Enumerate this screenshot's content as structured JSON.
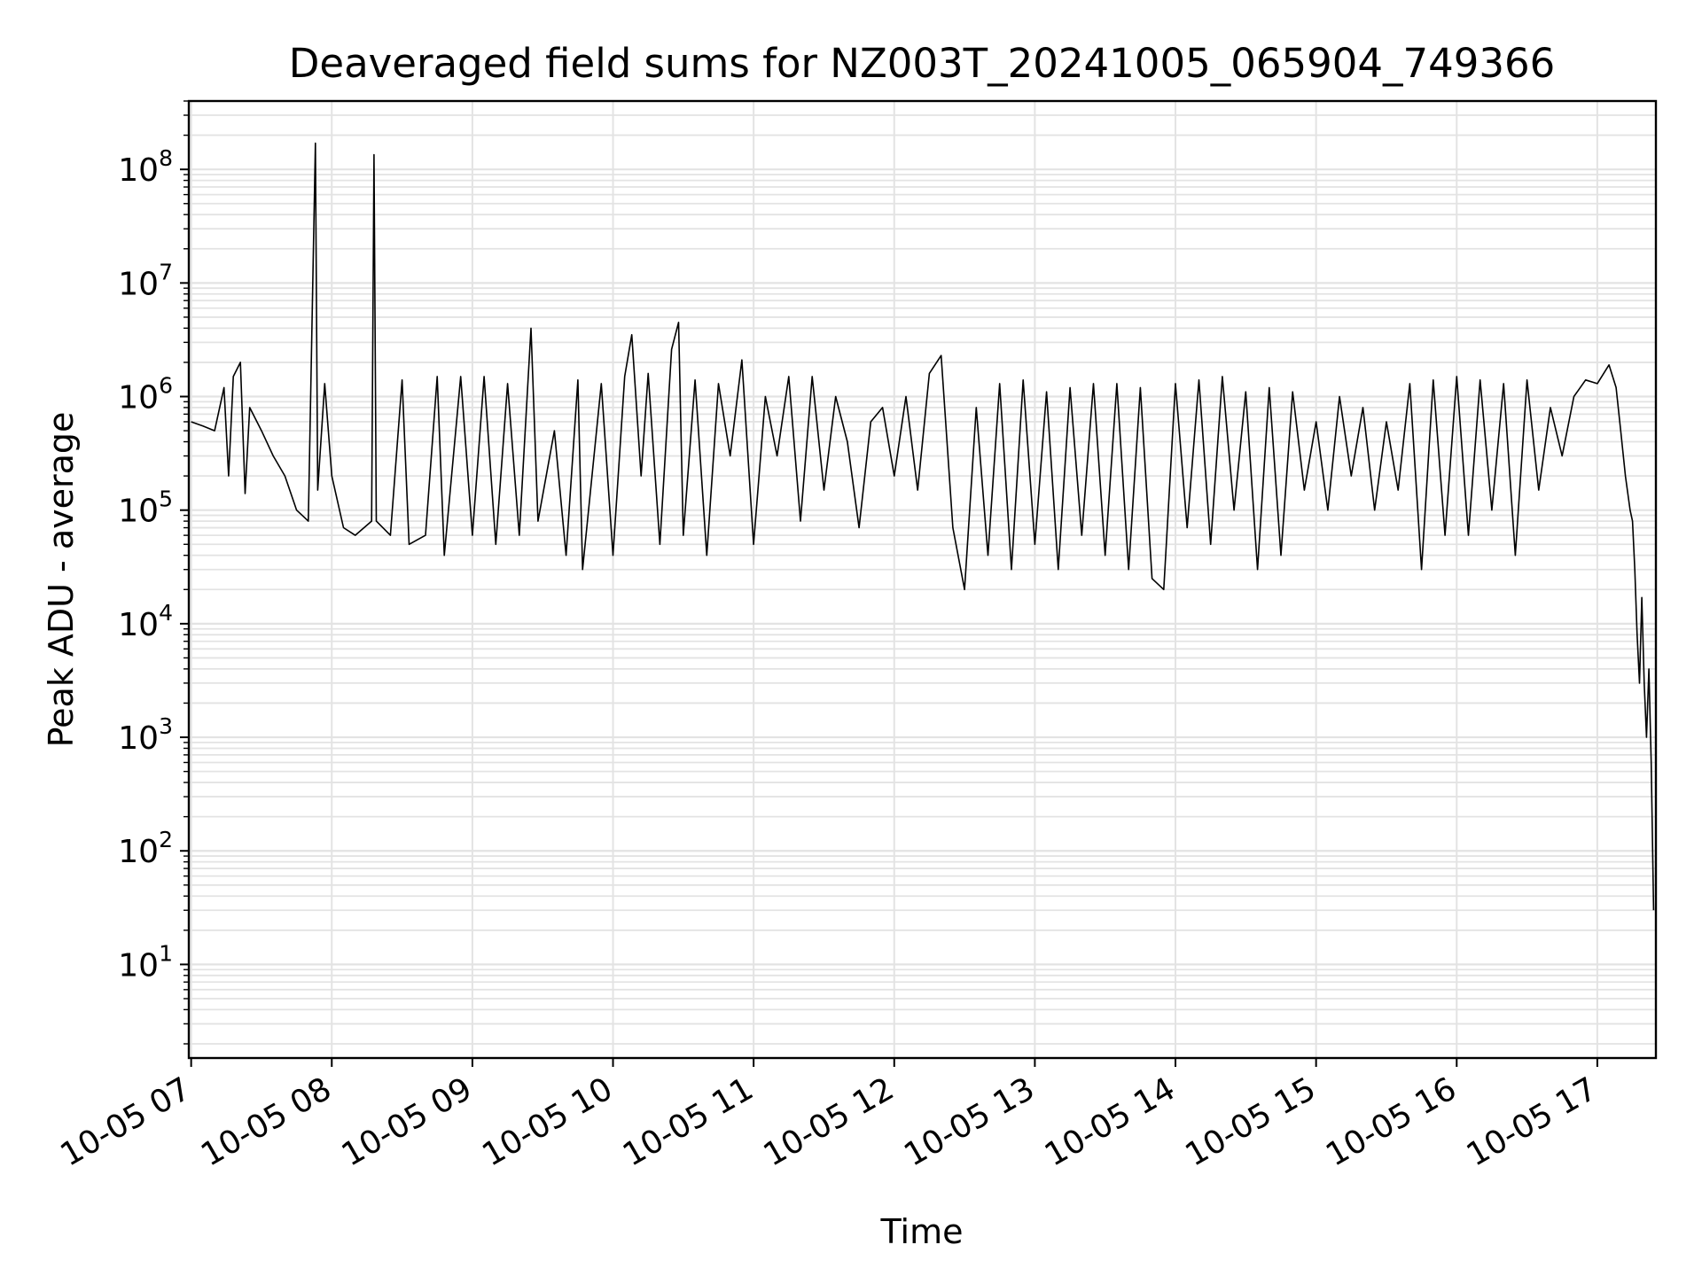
{
  "chart_data": {
    "type": "line",
    "title": "Deaveraged field sums for NZ003T_20241005_065904_749366",
    "xlabel": "Time",
    "ylabel": "Peak ADU - average",
    "y_scale": "log",
    "grid": true,
    "legend": "none",
    "line_color": "#000000",
    "x_tick_labels": [
      "10-05 07",
      "10-05 08",
      "10-05 09",
      "10-05 10",
      "10-05 11",
      "10-05 12",
      "10-05 13",
      "10-05 14",
      "10-05 15",
      "10-05 16",
      "10-05 17"
    ],
    "x_ticks": [
      "2024-10-05 07:00",
      "2024-10-05 08:00",
      "2024-10-05 09:00",
      "2024-10-05 10:00",
      "2024-10-05 11:00",
      "2024-10-05 12:00",
      "2024-10-05 13:00",
      "2024-10-05 14:00",
      "2024-10-05 15:00",
      "2024-10-05 16:00",
      "2024-10-05 17:00"
    ],
    "y_tick_labels": [
      {
        "base": "10",
        "exp": "1"
      },
      {
        "base": "10",
        "exp": "2"
      },
      {
        "base": "10",
        "exp": "3"
      },
      {
        "base": "10",
        "exp": "4"
      },
      {
        "base": "10",
        "exp": "5"
      },
      {
        "base": "10",
        "exp": "6"
      },
      {
        "base": "10",
        "exp": "7"
      },
      {
        "base": "10",
        "exp": "8"
      }
    ],
    "xlim": [
      "2024-10-05 06:59",
      "2024-10-05 17:25"
    ],
    "ylim": [
      1.5,
      400000000
    ],
    "series": [
      {
        "points": [
          [
            "2024-10-05 07:00",
            600000
          ],
          [
            "2024-10-05 07:05",
            550000
          ],
          [
            "2024-10-05 07:10",
            500000
          ],
          [
            "2024-10-05 07:14",
            1200000
          ],
          [
            "2024-10-05 07:16",
            200000
          ],
          [
            "2024-10-05 07:18",
            1500000
          ],
          [
            "2024-10-05 07:21",
            2000000
          ],
          [
            "2024-10-05 07:23",
            140000
          ],
          [
            "2024-10-05 07:25",
            800000
          ],
          [
            "2024-10-05 07:30",
            500000
          ],
          [
            "2024-10-05 07:35",
            300000
          ],
          [
            "2024-10-05 07:40",
            200000
          ],
          [
            "2024-10-05 07:45",
            100000
          ],
          [
            "2024-10-05 07:50",
            80000
          ],
          [
            "2024-10-05 07:53",
            170000000
          ],
          [
            "2024-10-05 07:54",
            150000
          ],
          [
            "2024-10-05 07:57",
            1300000
          ],
          [
            "2024-10-05 08:00",
            200000
          ],
          [
            "2024-10-05 08:05",
            70000
          ],
          [
            "2024-10-05 08:10",
            60000
          ],
          [
            "2024-10-05 08:17",
            80000
          ],
          [
            "2024-10-05 08:18",
            135000000
          ],
          [
            "2024-10-05 08:19",
            80000
          ],
          [
            "2024-10-05 08:25",
            60000
          ],
          [
            "2024-10-05 08:30",
            1400000
          ],
          [
            "2024-10-05 08:33",
            50000
          ],
          [
            "2024-10-05 08:40",
            60000
          ],
          [
            "2024-10-05 08:45",
            1500000
          ],
          [
            "2024-10-05 08:48",
            40000
          ],
          [
            "2024-10-05 08:55",
            1500000
          ],
          [
            "2024-10-05 09:00",
            60000
          ],
          [
            "2024-10-05 09:05",
            1500000
          ],
          [
            "2024-10-05 09:10",
            50000
          ],
          [
            "2024-10-05 09:15",
            1300000
          ],
          [
            "2024-10-05 09:20",
            60000
          ],
          [
            "2024-10-05 09:25",
            4000000
          ],
          [
            "2024-10-05 09:28",
            80000
          ],
          [
            "2024-10-05 09:35",
            500000
          ],
          [
            "2024-10-05 09:40",
            40000
          ],
          [
            "2024-10-05 09:45",
            1400000
          ],
          [
            "2024-10-05 09:47",
            30000
          ],
          [
            "2024-10-05 09:55",
            1300000
          ],
          [
            "2024-10-05 10:00",
            40000
          ],
          [
            "2024-10-05 10:05",
            1500000
          ],
          [
            "2024-10-05 10:08",
            3500000
          ],
          [
            "2024-10-05 10:12",
            200000
          ],
          [
            "2024-10-05 10:15",
            1600000
          ],
          [
            "2024-10-05 10:20",
            50000
          ],
          [
            "2024-10-05 10:25",
            2600000
          ],
          [
            "2024-10-05 10:28",
            4500000
          ],
          [
            "2024-10-05 10:30",
            60000
          ],
          [
            "2024-10-05 10:35",
            1400000
          ],
          [
            "2024-10-05 10:40",
            40000
          ],
          [
            "2024-10-05 10:45",
            1300000
          ],
          [
            "2024-10-05 10:50",
            300000
          ],
          [
            "2024-10-05 10:55",
            2100000
          ],
          [
            "2024-10-05 11:00",
            50000
          ],
          [
            "2024-10-05 11:05",
            1000000
          ],
          [
            "2024-10-05 11:10",
            300000
          ],
          [
            "2024-10-05 11:15",
            1500000
          ],
          [
            "2024-10-05 11:20",
            80000
          ],
          [
            "2024-10-05 11:25",
            1500000
          ],
          [
            "2024-10-05 11:30",
            150000
          ],
          [
            "2024-10-05 11:35",
            1000000
          ],
          [
            "2024-10-05 11:40",
            400000
          ],
          [
            "2024-10-05 11:45",
            70000
          ],
          [
            "2024-10-05 11:50",
            600000
          ],
          [
            "2024-10-05 11:55",
            800000
          ],
          [
            "2024-10-05 12:00",
            200000
          ],
          [
            "2024-10-05 12:05",
            1000000
          ],
          [
            "2024-10-05 12:10",
            150000
          ],
          [
            "2024-10-05 12:15",
            1600000
          ],
          [
            "2024-10-05 12:20",
            2300000
          ],
          [
            "2024-10-05 12:25",
            70000
          ],
          [
            "2024-10-05 12:30",
            20000
          ],
          [
            "2024-10-05 12:35",
            800000
          ],
          [
            "2024-10-05 12:40",
            40000
          ],
          [
            "2024-10-05 12:45",
            1300000
          ],
          [
            "2024-10-05 12:50",
            30000
          ],
          [
            "2024-10-05 12:55",
            1400000
          ],
          [
            "2024-10-05 13:00",
            50000
          ],
          [
            "2024-10-05 13:05",
            1100000
          ],
          [
            "2024-10-05 13:10",
            30000
          ],
          [
            "2024-10-05 13:15",
            1200000
          ],
          [
            "2024-10-05 13:20",
            60000
          ],
          [
            "2024-10-05 13:25",
            1300000
          ],
          [
            "2024-10-05 13:30",
            40000
          ],
          [
            "2024-10-05 13:35",
            1300000
          ],
          [
            "2024-10-05 13:40",
            30000
          ],
          [
            "2024-10-05 13:45",
            1200000
          ],
          [
            "2024-10-05 13:50",
            25000
          ],
          [
            "2024-10-05 13:55",
            20000
          ],
          [
            "2024-10-05 14:00",
            1300000
          ],
          [
            "2024-10-05 14:05",
            70000
          ],
          [
            "2024-10-05 14:10",
            1400000
          ],
          [
            "2024-10-05 14:15",
            50000
          ],
          [
            "2024-10-05 14:20",
            1500000
          ],
          [
            "2024-10-05 14:25",
            100000
          ],
          [
            "2024-10-05 14:30",
            1100000
          ],
          [
            "2024-10-05 14:35",
            30000
          ],
          [
            "2024-10-05 14:40",
            1200000
          ],
          [
            "2024-10-05 14:45",
            40000
          ],
          [
            "2024-10-05 14:50",
            1100000
          ],
          [
            "2024-10-05 14:55",
            150000
          ],
          [
            "2024-10-05 15:00",
            600000
          ],
          [
            "2024-10-05 15:05",
            100000
          ],
          [
            "2024-10-05 15:10",
            1000000
          ],
          [
            "2024-10-05 15:15",
            200000
          ],
          [
            "2024-10-05 15:20",
            800000
          ],
          [
            "2024-10-05 15:25",
            100000
          ],
          [
            "2024-10-05 15:30",
            600000
          ],
          [
            "2024-10-05 15:35",
            150000
          ],
          [
            "2024-10-05 15:40",
            1300000
          ],
          [
            "2024-10-05 15:45",
            30000
          ],
          [
            "2024-10-05 15:50",
            1400000
          ],
          [
            "2024-10-05 15:55",
            60000
          ],
          [
            "2024-10-05 16:00",
            1500000
          ],
          [
            "2024-10-05 16:05",
            60000
          ],
          [
            "2024-10-05 16:10",
            1400000
          ],
          [
            "2024-10-05 16:15",
            100000
          ],
          [
            "2024-10-05 16:20",
            1300000
          ],
          [
            "2024-10-05 16:25",
            40000
          ],
          [
            "2024-10-05 16:30",
            1400000
          ],
          [
            "2024-10-05 16:35",
            150000
          ],
          [
            "2024-10-05 16:40",
            800000
          ],
          [
            "2024-10-05 16:45",
            300000
          ],
          [
            "2024-10-05 16:50",
            1000000
          ],
          [
            "2024-10-05 16:55",
            1400000
          ],
          [
            "2024-10-05 17:00",
            1300000
          ],
          [
            "2024-10-05 17:05",
            1900000
          ],
          [
            "2024-10-05 17:08",
            1200000
          ],
          [
            "2024-10-05 17:10",
            500000
          ],
          [
            "2024-10-05 17:12",
            200000
          ],
          [
            "2024-10-05 17:14",
            100000
          ],
          [
            "2024-10-05 17:15",
            80000
          ],
          [
            "2024-10-05 17:16",
            30000
          ],
          [
            "2024-10-05 17:17",
            8000
          ],
          [
            "2024-10-05 17:18",
            3000
          ],
          [
            "2024-10-05 17:19",
            17000
          ],
          [
            "2024-10-05 17:20",
            3000
          ],
          [
            "2024-10-05 17:21",
            1000
          ],
          [
            "2024-10-05 17:22",
            4000
          ],
          [
            "2024-10-05 17:23",
            600
          ],
          [
            "2024-10-05 17:24",
            30
          ]
        ]
      }
    ]
  }
}
